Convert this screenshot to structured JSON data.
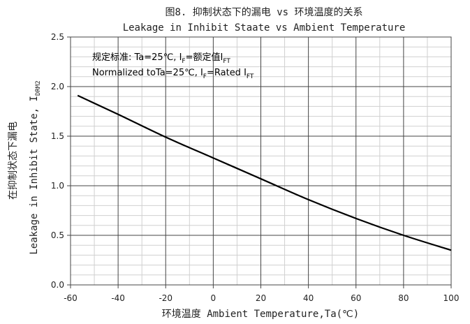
{
  "chart_data": {
    "type": "line",
    "title": "图8. 抑制状态下的漏电 vs 环境温度的关系",
    "subtitle": "Leakage in Inhibit Staate vs Ambient Temperature",
    "xlabel": "环境温度 Ambient Temperature,Ta(℃)",
    "ylabel_cn": "在抑制状态下漏电",
    "ylabel_en": "Leakage in Inhibit State, I",
    "ylabel_sub": "DRM2",
    "xlim": [
      -60,
      100
    ],
    "ylim": [
      0.0,
      2.5
    ],
    "x_ticks": [
      -60,
      -40,
      -20,
      0,
      20,
      40,
      60,
      80,
      100
    ],
    "y_ticks": [
      "0.0",
      "0.5",
      "1.0",
      "1.5",
      "2.0",
      "2.5"
    ],
    "grid": true,
    "annotation": {
      "line1_a": "规定标准: Ta=25℃, I",
      "line1_sub": "F",
      "line1_b": "=额定值I",
      "line1_sub2": "FT",
      "line2_a": "Normalized toTa=25℃, I",
      "line2_sub": "F",
      "line2_b": "=Rated I",
      "line2_sub2": "FT"
    },
    "series": [
      {
        "color": "#000000",
        "x": [
          -57,
          -40,
          -20,
          0,
          20,
          40,
          60,
          80,
          100
        ],
        "y": [
          1.91,
          1.72,
          1.49,
          1.28,
          1.07,
          0.86,
          0.67,
          0.5,
          0.35
        ]
      }
    ]
  }
}
